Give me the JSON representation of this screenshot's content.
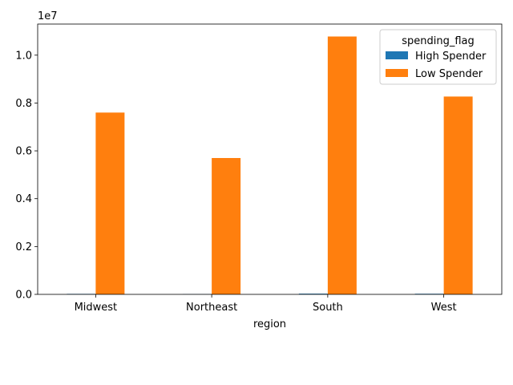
{
  "chart_data": {
    "type": "bar",
    "categories": [
      "Midwest",
      "Northeast",
      "South",
      "West"
    ],
    "series": [
      {
        "name": "High Spender",
        "values": [
          20000,
          10000,
          30000,
          25000
        ],
        "color": "#1f77b4"
      },
      {
        "name": "Low Spender",
        "values": [
          7600000,
          5700000,
          10780000,
          8270000
        ],
        "color": "#ff7f0e"
      }
    ],
    "xlabel": "region",
    "ylabel": "",
    "ylim": [
      0,
      11300000
    ],
    "yticks": [
      0.0,
      0.2,
      0.4,
      0.6,
      0.8,
      1.0
    ],
    "y_offset_label": "1e7",
    "legend": {
      "title": "spending_flag",
      "placement": "top-right"
    },
    "grid": false
  }
}
